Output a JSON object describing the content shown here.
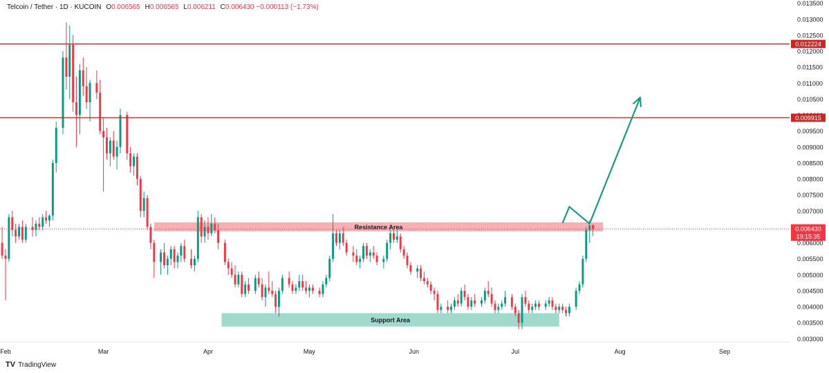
{
  "header": {
    "symbol": "Telcoin / Tether · 1D · KUCOIN",
    "o_label": "O",
    "o_value": "0.006565",
    "h_label": "H",
    "h_value": "0.006565",
    "l_label": "L",
    "l_value": "0.006211",
    "c_label": "C",
    "c_value": "0.006430",
    "change": "−0.000113 (−1.73%)"
  },
  "brand": {
    "logo": "TV",
    "name": "TradingView"
  },
  "colors": {
    "up": "#089981",
    "down": "#f23645",
    "hline": "#c62828",
    "resistance": "#f5a3a8",
    "support": "#8fd3c4",
    "arrow": "#1a9a80",
    "axis_text": "#131722",
    "price_tag": "#f23645"
  },
  "chart_data": {
    "type": "candlestick",
    "title": "",
    "y_axis": {
      "min": 0.0029,
      "max": 0.0136,
      "side": "right",
      "ticks": [
        "0.003000",
        "0.003500",
        "0.004000",
        "0.004500",
        "0.005000",
        "0.005500",
        "0.006000",
        "0.006500",
        "0.007000",
        "0.007500",
        "0.008000",
        "0.008500",
        "0.009000",
        "0.009500",
        "0.010000",
        "0.010500",
        "0.011000",
        "0.011500",
        "0.012000",
        "0.012500",
        "0.013000",
        "0.013500"
      ]
    },
    "x_axis": {
      "labels": [
        {
          "label": "Feb",
          "date": "2024-02-01"
        },
        {
          "label": "Mar",
          "date": "2024-03-01"
        },
        {
          "label": "Apr",
          "date": "2024-04-01"
        },
        {
          "label": "May",
          "date": "2024-05-01"
        },
        {
          "label": "Jun",
          "date": "2024-06-01"
        },
        {
          "label": "Jul",
          "date": "2024-07-01"
        },
        {
          "label": "Aug",
          "date": "2024-08-01"
        },
        {
          "label": "Sep",
          "date": "2024-09-01"
        }
      ],
      "range": [
        "2024-02-01",
        "2024-09-15"
      ]
    },
    "horizontal_lines": [
      {
        "price": 0.012224,
        "label": "0.012224"
      },
      {
        "price": 0.009915,
        "label": "0.009915"
      }
    ],
    "zones": [
      {
        "name": "Resistance Area",
        "start": "2024-03-16",
        "end": "2024-07-27",
        "low": 0.00636,
        "high": 0.00664
      },
      {
        "name": "Support Area",
        "start": "2024-04-05",
        "end": "2024-07-14",
        "low": 0.00338,
        "high": 0.0038
      }
    ],
    "last_price": {
      "value": 0.00643,
      "label": "0.006430",
      "countdown": "19:15:35"
    },
    "projection_arrow": [
      {
        "date": "2024-07-15",
        "price": 0.00662
      },
      {
        "date": "2024-07-17",
        "price": 0.00713
      },
      {
        "date": "2024-07-23",
        "price": 0.0066
      },
      {
        "date": "2024-08-07",
        "price": 0.01055
      }
    ],
    "candles": [
      [
        0.0058,
        0.0062,
        0.0054,
        0.006
      ],
      [
        0.006,
        0.0065,
        0.0055,
        0.0056
      ],
      [
        0.0056,
        0.0058,
        0.0042,
        0.0055
      ],
      [
        0.0055,
        0.0069,
        0.0054,
        0.0068
      ],
      [
        0.0068,
        0.007,
        0.0062,
        0.0064
      ],
      [
        0.0064,
        0.0066,
        0.006,
        0.0062
      ],
      [
        0.0062,
        0.0066,
        0.0061,
        0.0065
      ],
      [
        0.0065,
        0.0067,
        0.006,
        0.0061
      ],
      [
        0.0061,
        0.0066,
        0.006,
        0.0065
      ],
      [
        0.0065,
        0.0068,
        0.0062,
        0.0064
      ],
      [
        0.0064,
        0.0067,
        0.0062,
        0.0066
      ],
      [
        0.0066,
        0.0068,
        0.0064,
        0.0065
      ],
      [
        0.0065,
        0.0069,
        0.0064,
        0.0068
      ],
      [
        0.0068,
        0.007,
        0.0066,
        0.0067
      ],
      [
        0.0067,
        0.0069,
        0.0065,
        0.00685
      ],
      [
        0.00685,
        0.0086,
        0.0067,
        0.0085
      ],
      [
        0.0085,
        0.0098,
        0.0082,
        0.0096
      ],
      [
        0.0096,
        0.012,
        0.0094,
        0.0118
      ],
      [
        0.0118,
        0.0129,
        0.0108,
        0.0112
      ],
      [
        0.0112,
        0.0128,
        0.0105,
        0.0122
      ],
      [
        0.0122,
        0.0125,
        0.0101,
        0.0104
      ],
      [
        0.0104,
        0.0112,
        0.009,
        0.01
      ],
      [
        0.01,
        0.0116,
        0.0094,
        0.0114
      ],
      [
        0.0114,
        0.0118,
        0.0106,
        0.0109
      ],
      [
        0.0109,
        0.0115,
        0.0102,
        0.0104
      ],
      [
        0.0104,
        0.0111,
        0.0098,
        0.011
      ],
      [
        0.011,
        0.0114,
        0.0105,
        0.0107
      ],
      [
        0.0107,
        0.0111,
        0.0094,
        0.0095
      ],
      [
        0.0095,
        0.0099,
        0.0076,
        0.0093
      ],
      [
        0.0093,
        0.0096,
        0.0086,
        0.0088
      ],
      [
        0.0088,
        0.0093,
        0.0084,
        0.0092
      ],
      [
        0.0092,
        0.0095,
        0.0086,
        0.0087
      ],
      [
        0.0087,
        0.0092,
        0.0083,
        0.009
      ],
      [
        0.009,
        0.0102,
        0.0088,
        0.01
      ],
      [
        0.01,
        0.0101,
        0.0086,
        0.0088
      ],
      [
        0.0088,
        0.009,
        0.0082,
        0.0084
      ],
      [
        0.0084,
        0.0088,
        0.0081,
        0.0087
      ],
      [
        0.0087,
        0.0088,
        0.0078,
        0.008
      ],
      [
        0.008,
        0.0081,
        0.0068,
        0.007
      ],
      [
        0.007,
        0.0076,
        0.0068,
        0.0074
      ],
      [
        0.0074,
        0.0075,
        0.0064,
        0.0065
      ],
      [
        0.0065,
        0.0066,
        0.0058,
        0.006
      ],
      [
        0.006,
        0.0061,
        0.0049,
        0.0054
      ],
      [
        0.0054,
        0.0058,
        0.005,
        0.0057
      ],
      [
        0.0057,
        0.006,
        0.0052,
        0.0053
      ],
      [
        0.0053,
        0.0056,
        0.005,
        0.0055
      ],
      [
        0.0055,
        0.0059,
        0.0053,
        0.0058
      ],
      [
        0.0058,
        0.0059,
        0.0052,
        0.0054
      ],
      [
        0.0054,
        0.0057,
        0.0052,
        0.0056
      ],
      [
        0.0056,
        0.006,
        0.0054,
        0.0059
      ],
      [
        0.0059,
        0.0061,
        0.0054,
        0.0055
      ],
      [
        0.0055,
        0.0058,
        0.0052,
        0.0053
      ],
      [
        0.0053,
        0.0056,
        0.0051,
        0.0055
      ],
      [
        0.0055,
        0.007,
        0.0054,
        0.0068
      ],
      [
        0.0068,
        0.0069,
        0.006,
        0.0062
      ],
      [
        0.0062,
        0.0067,
        0.006,
        0.0065
      ],
      [
        0.0065,
        0.0068,
        0.0061,
        0.0063
      ],
      [
        0.0063,
        0.0069,
        0.0062,
        0.0066
      ],
      [
        0.0066,
        0.0068,
        0.0063,
        0.0064
      ],
      [
        0.0064,
        0.0066,
        0.0058,
        0.006
      ],
      [
        0.006,
        0.0061,
        0.0053,
        0.0054
      ],
      [
        0.0054,
        0.0055,
        0.005,
        0.0052
      ],
      [
        0.0052,
        0.0054,
        0.0049,
        0.005
      ],
      [
        0.005,
        0.0053,
        0.0046,
        0.0047
      ],
      [
        0.0047,
        0.0051,
        0.0046,
        0.005
      ],
      [
        0.005,
        0.0051,
        0.0043,
        0.0044
      ],
      [
        0.0044,
        0.0048,
        0.0043,
        0.0047
      ],
      [
        0.0047,
        0.0049,
        0.0044,
        0.0045
      ],
      [
        0.0045,
        0.005,
        0.0044,
        0.0049
      ],
      [
        0.0049,
        0.0051,
        0.0046,
        0.0047
      ],
      [
        0.0047,
        0.0049,
        0.0042,
        0.0043
      ],
      [
        0.0043,
        0.0047,
        0.004,
        0.0046
      ],
      [
        0.0046,
        0.0051,
        0.0044,
        0.0045
      ],
      [
        0.0045,
        0.0048,
        0.0043,
        0.0044
      ],
      [
        0.0044,
        0.0045,
        0.0038,
        0.004
      ],
      [
        0.004,
        0.0046,
        0.0037,
        0.0045
      ],
      [
        0.0045,
        0.005,
        0.0044,
        0.0049
      ],
      [
        0.0049,
        0.0051,
        0.0046,
        0.0047
      ],
      [
        0.0047,
        0.0048,
        0.0044,
        0.0045
      ],
      [
        0.0045,
        0.0047,
        0.0044,
        0.0046
      ],
      [
        0.0046,
        0.005,
        0.0045,
        0.0048
      ],
      [
        0.0048,
        0.005,
        0.0045,
        0.0046
      ],
      [
        0.0046,
        0.0048,
        0.0044,
        0.0045
      ],
      [
        0.0045,
        0.0047,
        0.0043,
        0.0046
      ],
      [
        0.0046,
        0.0047,
        0.0044,
        0.0045
      ],
      [
        0.0045,
        0.0046,
        0.0043,
        0.0044
      ],
      [
        0.0044,
        0.0048,
        0.0043,
        0.0047
      ],
      [
        0.0047,
        0.005,
        0.0046,
        0.0049
      ],
      [
        0.0049,
        0.0056,
        0.0048,
        0.0055
      ],
      [
        0.0055,
        0.0069,
        0.0054,
        0.0063
      ],
      [
        0.0063,
        0.0064,
        0.0059,
        0.006
      ],
      [
        0.006,
        0.0064,
        0.0058,
        0.0063
      ],
      [
        0.0063,
        0.0065,
        0.0059,
        0.006
      ],
      [
        0.006,
        0.0061,
        0.0056,
        0.0057
      ],
      [
        0.0057,
        0.0059,
        0.0054,
        0.0056
      ],
      [
        0.0056,
        0.0058,
        0.0053,
        0.0054
      ],
      [
        0.0054,
        0.0056,
        0.0052,
        0.0055
      ],
      [
        0.0055,
        0.006,
        0.0054,
        0.0059
      ],
      [
        0.0059,
        0.006,
        0.0055,
        0.0056
      ],
      [
        0.0056,
        0.0058,
        0.0054,
        0.0057
      ],
      [
        0.0057,
        0.0059,
        0.0055,
        0.0056
      ],
      [
        0.0056,
        0.0057,
        0.0053,
        0.0054
      ],
      [
        0.0054,
        0.0056,
        0.0052,
        0.0055
      ],
      [
        0.0055,
        0.0061,
        0.0054,
        0.006
      ],
      [
        0.006,
        0.0064,
        0.0058,
        0.0063
      ],
      [
        0.0063,
        0.0065,
        0.006,
        0.0061
      ],
      [
        0.0061,
        0.0064,
        0.006,
        0.0062
      ],
      [
        0.0062,
        0.0063,
        0.0057,
        0.0058
      ],
      [
        0.0058,
        0.0059,
        0.0055,
        0.0056
      ],
      [
        0.0056,
        0.0057,
        0.0052,
        0.0053
      ],
      [
        0.0053,
        0.0054,
        0.005,
        0.0051
      ],
      [
        0.0051,
        0.0053,
        0.0049,
        0.0052
      ],
      [
        0.0052,
        0.0053,
        0.0048,
        0.0049
      ],
      [
        0.0049,
        0.0051,
        0.0047,
        0.0048
      ],
      [
        0.0048,
        0.0049,
        0.0046,
        0.0047
      ],
      [
        0.0047,
        0.0048,
        0.0044,
        0.0045
      ],
      [
        0.0045,
        0.0046,
        0.0042,
        0.0044
      ],
      [
        0.0044,
        0.0045,
        0.0038,
        0.0039
      ],
      [
        0.0039,
        0.0041,
        0.0038,
        0.004
      ],
      [
        0.004,
        0.0042,
        0.0038,
        0.0039
      ],
      [
        0.0039,
        0.0041,
        0.0038,
        0.004
      ],
      [
        0.004,
        0.0043,
        0.0039,
        0.0042
      ],
      [
        0.0042,
        0.0044,
        0.004,
        0.0041
      ],
      [
        0.0041,
        0.0046,
        0.004,
        0.0045
      ],
      [
        0.0045,
        0.0047,
        0.0042,
        0.0043
      ],
      [
        0.0043,
        0.0044,
        0.0039,
        0.004
      ],
      [
        0.004,
        0.0043,
        0.0039,
        0.0042
      ],
      [
        0.0042,
        0.0044,
        0.004,
        0.0041
      ],
      [
        0.0041,
        0.0043,
        0.004,
        0.0042
      ],
      [
        0.0042,
        0.0046,
        0.0041,
        0.0045
      ],
      [
        0.0045,
        0.0048,
        0.0043,
        0.0044
      ],
      [
        0.0044,
        0.0046,
        0.004,
        0.0041
      ],
      [
        0.0041,
        0.0042,
        0.0038,
        0.0039
      ],
      [
        0.0039,
        0.0041,
        0.0038,
        0.004
      ],
      [
        0.004,
        0.0042,
        0.0039,
        0.0041
      ],
      [
        0.0041,
        0.0045,
        0.004,
        0.0043
      ],
      [
        0.0043,
        0.0044,
        0.0039,
        0.004
      ],
      [
        0.004,
        0.0041,
        0.0037,
        0.0038
      ],
      [
        0.0038,
        0.0039,
        0.0033,
        0.0035
      ],
      [
        0.0035,
        0.0044,
        0.0033,
        0.0043
      ],
      [
        0.0043,
        0.0045,
        0.004,
        0.0041
      ],
      [
        0.0041,
        0.0042,
        0.0038,
        0.0039
      ],
      [
        0.0039,
        0.0041,
        0.0038,
        0.004
      ],
      [
        0.004,
        0.0042,
        0.0039,
        0.0041
      ],
      [
        0.0041,
        0.0042,
        0.0039,
        0.004
      ],
      [
        0.004,
        0.0042,
        0.0039,
        0.0041
      ],
      [
        0.0041,
        0.0043,
        0.004,
        0.0042
      ],
      [
        0.0042,
        0.0043,
        0.0039,
        0.004
      ],
      [
        0.004,
        0.0041,
        0.0038,
        0.0039
      ],
      [
        0.0039,
        0.0041,
        0.0038,
        0.004
      ],
      [
        0.004,
        0.0041,
        0.0038,
        0.0039
      ],
      [
        0.0039,
        0.004,
        0.0037,
        0.0038
      ],
      [
        0.0038,
        0.0041,
        0.0037,
        0.004
      ],
      [
        0.004,
        0.0046,
        0.0039,
        0.0045
      ],
      [
        0.0045,
        0.0048,
        0.0044,
        0.0047
      ],
      [
        0.0047,
        0.0056,
        0.0046,
        0.0055
      ],
      [
        0.0055,
        0.0065,
        0.0054,
        0.0064
      ],
      [
        0.0064,
        0.0067,
        0.006,
        0.00655
      ],
      [
        0.00656,
        0.00656,
        0.00621,
        0.00643
      ]
    ]
  }
}
